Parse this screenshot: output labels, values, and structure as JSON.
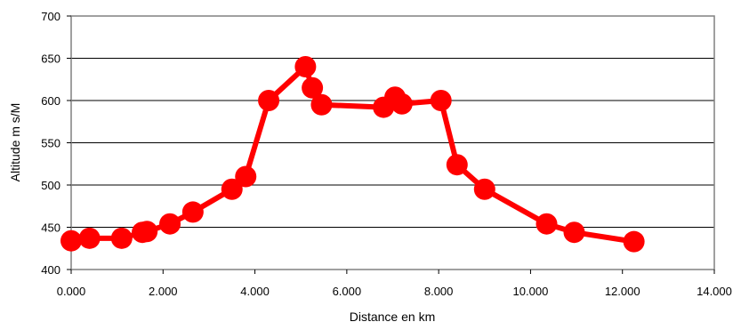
{
  "chart_data": {
    "type": "line",
    "title": "",
    "xlabel": "Distance en km",
    "ylabel": "Altitude m s/M",
    "xlim": [
      0,
      14
    ],
    "ylim": [
      400,
      700
    ],
    "x_ticks": [
      "0.000",
      "2.000",
      "4.000",
      "6.000",
      "8.000",
      "10.000",
      "12.000",
      "14.000"
    ],
    "y_ticks": [
      "400",
      "450",
      "500",
      "550",
      "600",
      "650",
      "700"
    ],
    "grid": "horizontal",
    "legend": "none",
    "series": [
      {
        "color": "#ff0000",
        "marker": "circle",
        "points": [
          {
            "x": 0.0,
            "y": 434
          },
          {
            "x": 0.4,
            "y": 437
          },
          {
            "x": 1.1,
            "y": 437
          },
          {
            "x": 1.55,
            "y": 444
          },
          {
            "x": 1.65,
            "y": 445
          },
          {
            "x": 2.15,
            "y": 454
          },
          {
            "x": 2.65,
            "y": 468
          },
          {
            "x": 3.5,
            "y": 495
          },
          {
            "x": 3.8,
            "y": 510
          },
          {
            "x": 4.3,
            "y": 600
          },
          {
            "x": 5.1,
            "y": 640
          },
          {
            "x": 5.25,
            "y": 615
          },
          {
            "x": 5.45,
            "y": 595
          },
          {
            "x": 6.8,
            "y": 592
          },
          {
            "x": 7.05,
            "y": 604
          },
          {
            "x": 7.2,
            "y": 596
          },
          {
            "x": 8.05,
            "y": 600
          },
          {
            "x": 8.4,
            "y": 524
          },
          {
            "x": 9.0,
            "y": 495
          },
          {
            "x": 10.35,
            "y": 454
          },
          {
            "x": 10.95,
            "y": 444
          },
          {
            "x": 12.25,
            "y": 433
          }
        ]
      }
    ]
  }
}
